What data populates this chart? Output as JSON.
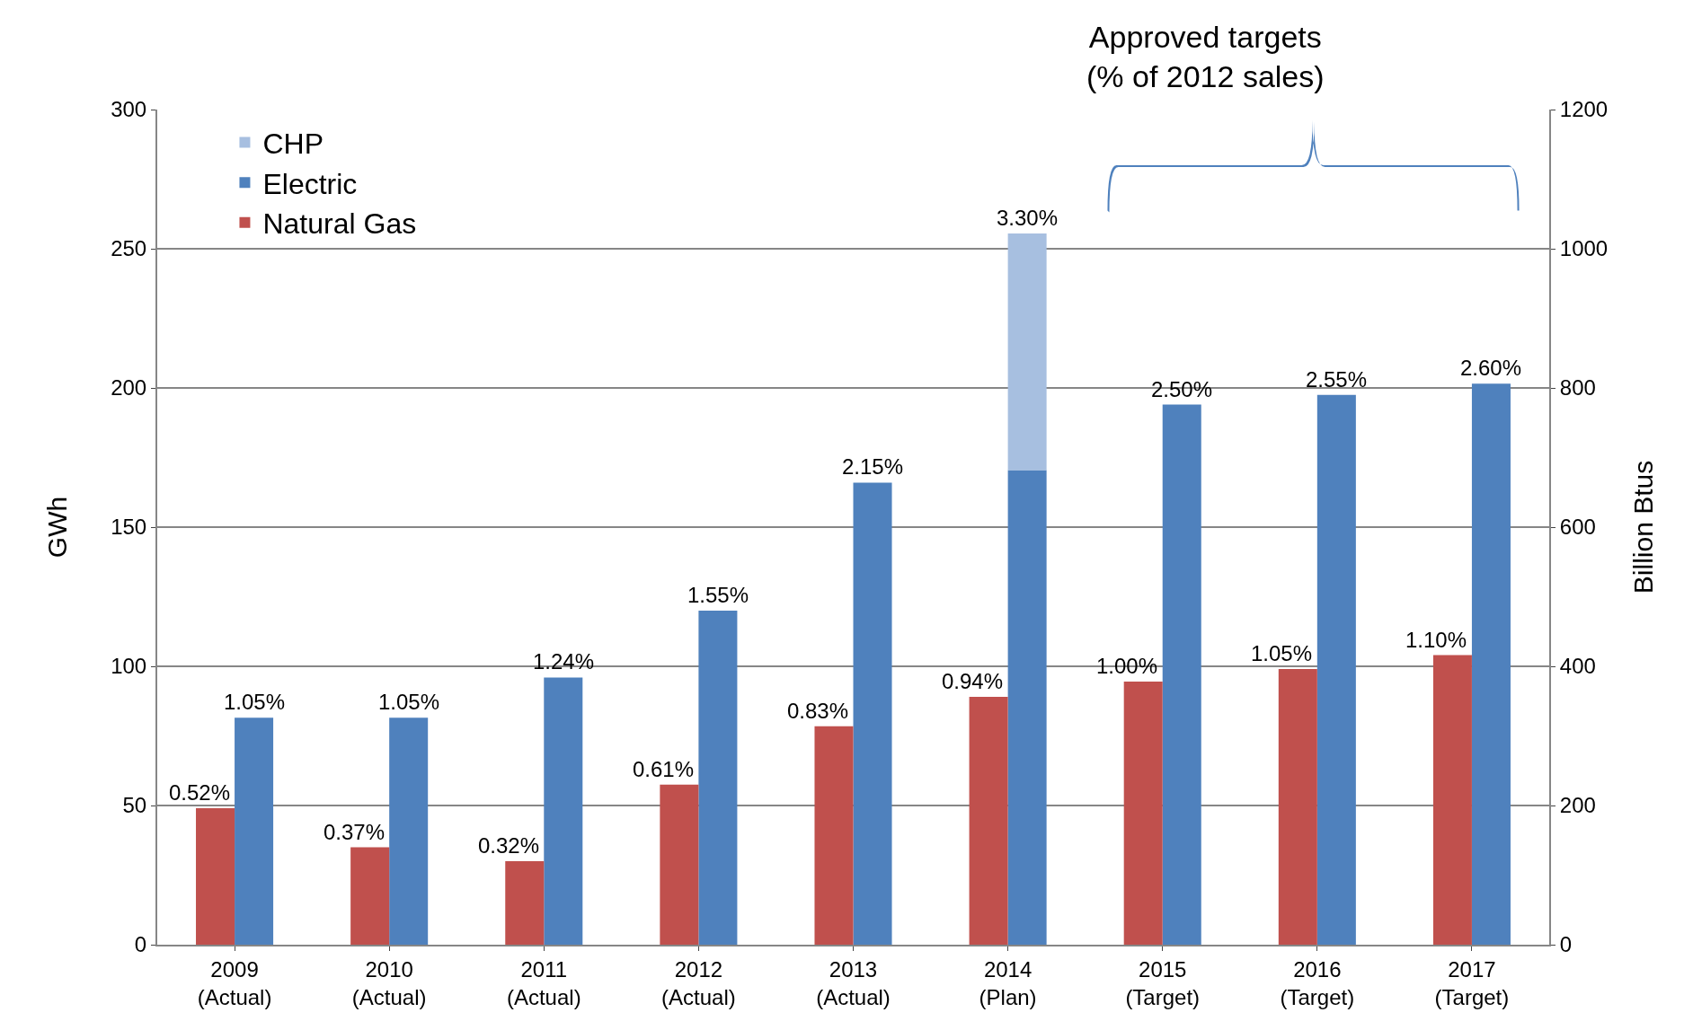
{
  "chart_data": {
    "type": "bar",
    "ylabel": "GWh",
    "y2label": "Billion Btus",
    "categories": [
      "2009\n(Actual)",
      "2010\n(Actual)",
      "2011\n(Actual)",
      "2012\n(Actual)",
      "2013\n(Actual)",
      "2014\n(Plan)",
      "2015\n(Target)",
      "2016\n(Target)",
      "2017\n(Target)"
    ],
    "series": [
      {
        "name": "Natural Gas",
        "color": "#c0504d",
        "axis": "y2",
        "values": [
          196,
          140,
          120,
          230,
          314,
          356,
          378,
          396,
          416
        ]
      },
      {
        "name": "Electric",
        "color": "#4f81bd",
        "values": [
          81.5,
          81.5,
          96,
          120,
          166,
          170.5,
          194,
          197.5,
          201.5
        ]
      },
      {
        "name": "CHP",
        "color": "#a7bfe0",
        "values": [
          null,
          null,
          null,
          null,
          null,
          85,
          null,
          null,
          null
        ]
      }
    ],
    "stacked": true,
    "ylim": [
      0,
      300
    ],
    "yticks": [
      0,
      50,
      100,
      150,
      200,
      250,
      300
    ],
    "y2lim": [
      0,
      1200
    ],
    "y2ticks": [
      0,
      200,
      400,
      600,
      800,
      1000,
      1200
    ],
    "grid": "y",
    "legend": "top left",
    "annotations": [
      "Approved targets\n(% of 2012 sales)",
      {
        "text": "0.52%",
        "x": "2009\n(Actual)",
        "y": 49
      },
      {
        "text": "0.37%",
        "x": "2010\n(Actual)",
        "y": 35
      },
      {
        "text": "0.32%",
        "x": "2011\n(Actual)",
        "y": 30
      },
      {
        "text": "0.61%",
        "x": "2012\n(Actual)",
        "y": 57.5
      },
      {
        "text": "0.83%",
        "x": "2013\n(Actual)",
        "y": 78.5
      },
      {
        "text": "0.94%",
        "x": "2014\n(Plan)",
        "y": 89
      },
      {
        "text": "1.00%",
        "x": "2015\n(Target)",
        "y": 94.5
      },
      {
        "text": "1.05%",
        "x": "2016\n(Target)",
        "y": 99
      },
      {
        "text": "1.10%",
        "x": "2017\n(Target)",
        "y": 104
      },
      {
        "text": "1.05%",
        "x": "2009\n(Actual)",
        "y": 81.5
      },
      {
        "text": "1.05%",
        "x": "2010\n(Actual)",
        "y": 81.5
      },
      {
        "text": "1.24%",
        "x": "2011\n(Actual)",
        "y": 96
      },
      {
        "text": "1.55%",
        "x": "2012\n(Actual)",
        "y": 120
      },
      {
        "text": "2.15%",
        "x": "2013\n(Actual)",
        "y": 166
      },
      {
        "text": "3.30%",
        "x": "2014\n(Plan)",
        "y": 255.5
      },
      {
        "text": "2.50%",
        "x": "2015\n(Target)",
        "y": 194
      },
      {
        "text": "2.55%",
        "x": "2016\n(Target)",
        "y": 197.5
      },
      {
        "text": "2.60%",
        "x": "2017\n(Target)",
        "y": 201.5
      }
    ]
  }
}
